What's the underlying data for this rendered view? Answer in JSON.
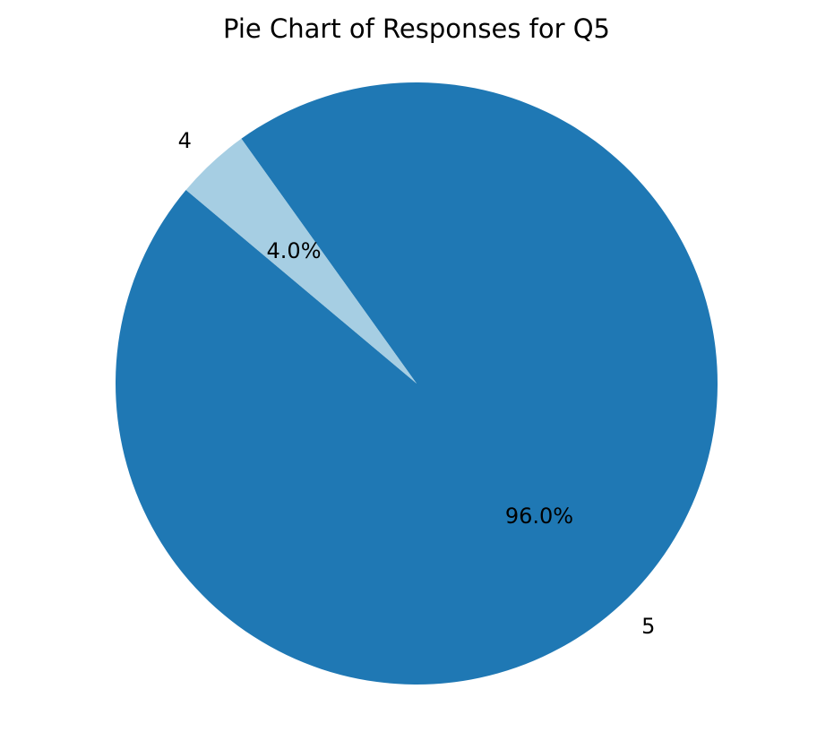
{
  "chart_data": {
    "type": "pie",
    "title": "Pie Chart of Responses for Q5",
    "start_angle_deg": 140,
    "direction": "counterclockwise",
    "slices": [
      {
        "label": "5",
        "value": 96.0,
        "pct_label": "96.0%",
        "color": "#1f78b4"
      },
      {
        "label": "4",
        "value": 4.0,
        "pct_label": "4.0%",
        "color": "#a6cee3"
      }
    ]
  }
}
